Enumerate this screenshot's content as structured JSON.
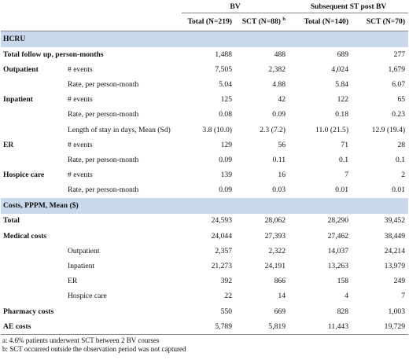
{
  "header": {
    "group1": "BV",
    "group2": "Subsequent ST  post BV",
    "cols": [
      {
        "label": "Total (N=219)",
        "sup": ""
      },
      {
        "label": "SCT (N=88)",
        "sup": "b"
      },
      {
        "label": "Total (N=140)",
        "sup": ""
      },
      {
        "label": "SCT (N=70)",
        "sup": ""
      }
    ]
  },
  "sections": [
    {
      "title": "HCRU",
      "rows": [
        {
          "label": "Total follow up, person-months",
          "sub": "",
          "vals": [
            "1,488",
            "488",
            "689",
            "277"
          ],
          "bold": true,
          "span": true
        },
        {
          "label": "Outpatient",
          "sub": "# events",
          "vals": [
            "7,505",
            "2,382",
            "4,024",
            "1,679"
          ],
          "bold": true
        },
        {
          "label": "",
          "sub": "Rate, per person-month",
          "vals": [
            "5.04",
            "4.88",
            "5.84",
            "6.07"
          ]
        },
        {
          "label": "Inpatient",
          "sub": "# events",
          "vals": [
            "125",
            "42",
            "122",
            "65"
          ],
          "bold": true
        },
        {
          "label": "",
          "sub": "Rate, per person-month",
          "vals": [
            "0.08",
            "0.09",
            "0.18",
            "0.23"
          ]
        },
        {
          "label": "",
          "sub": "Length of stay in days, Mean (Sd)",
          "vals": [
            "3.8 (10.0)",
            "2.3 (7.2)",
            "11.0 (21.5)",
            "12.9 (19.4)"
          ]
        },
        {
          "label": "ER",
          "sub": "# events",
          "vals": [
            "129",
            "56",
            "71",
            "28"
          ],
          "bold": true
        },
        {
          "label": "",
          "sub": "Rate, per person-month",
          "vals": [
            "0.09",
            "0.11",
            "0.1",
            "0.1"
          ]
        },
        {
          "label": "Hospice care",
          "sub": "# events",
          "vals": [
            "139",
            "16",
            "7",
            "2"
          ],
          "bold": true
        },
        {
          "label": "",
          "sub": "Rate, per person-month",
          "vals": [
            "0.09",
            "0.03",
            "0.01",
            "0.01"
          ]
        }
      ]
    },
    {
      "title": "Costs, PPPM, Mean ($)",
      "rows": [
        {
          "label": "Total",
          "sub": "",
          "vals": [
            "24,593",
            "28,062",
            "28,290",
            "39,452"
          ],
          "bold": true
        },
        {
          "label": "Medical costs",
          "sub": "",
          "vals": [
            "24,044",
            "27,393",
            "27,462",
            "38,449"
          ],
          "bold": true
        },
        {
          "label": "",
          "sub": "Outpatient",
          "vals": [
            "2,357",
            "2,322",
            "14,037",
            "24,214"
          ]
        },
        {
          "label": "",
          "sub": "Inpatient",
          "vals": [
            "21,273",
            "24,191",
            "13,263",
            "13,979"
          ]
        },
        {
          "label": "",
          "sub": "ER",
          "vals": [
            "392",
            "866",
            "158",
            "249"
          ]
        },
        {
          "label": "",
          "sub": "Hospice care",
          "vals": [
            "22",
            "14",
            "4",
            "7"
          ]
        },
        {
          "label": "Pharmacy costs",
          "sub": "",
          "vals": [
            "550",
            "669",
            "828",
            "1,003"
          ],
          "bold": true
        },
        {
          "label": "AE costs",
          "sub": "",
          "vals": [
            "5,789",
            "5,819",
            "11,443",
            "19,729"
          ],
          "bold": true
        }
      ]
    }
  ],
  "footnotes": [
    "a: 4.6% patients underwent SCT between 2 BV courses",
    "b: SCT occurred outside the observation period was not captured"
  ]
}
